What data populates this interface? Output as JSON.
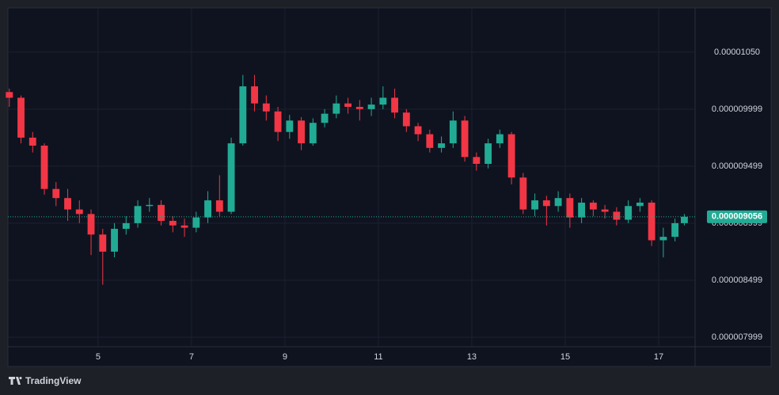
{
  "chart_data": {
    "type": "candlestick",
    "up_color": "#22ab94",
    "down_color": "#f23645",
    "x": [
      3.1,
      3.35,
      3.6,
      3.85,
      4.1,
      4.35,
      4.6,
      4.85,
      5.1,
      5.35,
      5.6,
      5.85,
      6.1,
      6.35,
      6.6,
      6.85,
      7.1,
      7.35,
      7.6,
      7.85,
      8.1,
      8.35,
      8.6,
      8.85,
      9.1,
      9.35,
      9.6,
      9.85,
      10.1,
      10.35,
      10.6,
      10.85,
      11.1,
      11.35,
      11.6,
      11.85,
      12.1,
      12.35,
      12.6,
      12.85,
      13.1,
      13.35,
      13.6,
      13.85,
      14.1,
      14.35,
      14.6,
      14.85,
      15.1,
      15.35,
      15.6,
      15.85,
      16.1,
      16.35,
      16.6,
      16.85,
      17.1,
      17.35,
      17.55
    ],
    "open": [
      1.015e-05,
      1.01e-05,
      9.75e-06,
      9.68e-06,
      9.3e-06,
      9.22e-06,
      9.12e-06,
      9.08e-06,
      8.9e-06,
      8.75e-06,
      8.95e-06,
      9e-06,
      9.15e-06,
      9.16e-06,
      9.02e-06,
      8.98e-06,
      8.96e-06,
      9.05e-06,
      9.2e-06,
      9.1e-06,
      9.7e-06,
      1.02e-05,
      1.005e-05,
      9.98e-06,
      9.8e-06,
      9.9e-06,
      9.7e-06,
      9.88e-06,
      9.96e-06,
      1.005e-05,
      1.002e-05,
      1e-05,
      1.004e-05,
      1.01e-05,
      9.97e-06,
      9.85e-06,
      9.78e-06,
      9.66e-06,
      9.7e-06,
      9.9e-06,
      9.58e-06,
      9.52e-06,
      9.7e-06,
      9.78e-06,
      9.4e-06,
      9.12e-06,
      9.2e-06,
      9.15e-06,
      9.22e-06,
      9.05e-06,
      9.18e-06,
      9.12e-06,
      9.1e-06,
      9.03e-06,
      9.15e-06,
      9.18e-06,
      8.85e-06,
      8.88e-06,
      9e-06
    ],
    "high": [
      1.018e-05,
      1.012e-05,
      9.8e-06,
      9.7e-06,
      9.36e-06,
      9.3e-06,
      9.2e-06,
      9.12e-06,
      8.95e-06,
      9e-06,
      9.06e-06,
      9.2e-06,
      9.22e-06,
      9.2e-06,
      9.06e-06,
      9.04e-06,
      9.1e-06,
      9.28e-06,
      9.42e-06,
      9.75e-06,
      1.03e-05,
      1.03e-05,
      1.012e-05,
      1.002e-05,
      9.95e-06,
      9.93e-06,
      9.92e-06,
      1e-05,
      1.012e-05,
      1.01e-05,
      1.008e-05,
      1.01e-05,
      1.02e-05,
      1.018e-05,
      1e-05,
      9.88e-06,
      9.82e-06,
      9.76e-06,
      9.98e-06,
      9.94e-06,
      9.62e-06,
      9.74e-06,
      9.82e-06,
      9.8e-06,
      9.44e-06,
      9.26e-06,
      9.24e-06,
      9.28e-06,
      9.26e-06,
      9.22e-06,
      9.2e-06,
      9.16e-06,
      9.14e-06,
      9.2e-06,
      9.22e-06,
      9.2e-06,
      8.96e-06,
      9.04e-06,
      9.08e-06
    ],
    "low": [
      1.002e-05,
      9.7e-06,
      9.62e-06,
      9.25e-06,
      9.15e-06,
      9.02e-06,
      9e-06,
      8.72e-06,
      8.46e-06,
      8.7e-06,
      8.9e-06,
      8.96e-06,
      9.1e-06,
      8.98e-06,
      8.92e-06,
      8.88e-06,
      8.92e-06,
      9e-06,
      9.06e-06,
      9.08e-06,
      9.68e-06,
      9.98e-06,
      9.9e-06,
      9.72e-06,
      9.74e-06,
      9.64e-06,
      9.68e-06,
      9.84e-06,
      9.92e-06,
      9.96e-06,
      9.9e-06,
      9.94e-06,
      1e-05,
      9.92e-06,
      9.8e-06,
      9.72e-06,
      9.62e-06,
      9.62e-06,
      9.66e-06,
      9.54e-06,
      9.46e-06,
      9.48e-06,
      9.66e-06,
      9.34e-06,
      9.08e-06,
      9.06e-06,
      8.98e-06,
      9.1e-06,
      8.96e-06,
      9e-06,
      9.06e-06,
      9.04e-06,
      8.98e-06,
      9e-06,
      9.1e-06,
      8.8e-06,
      8.7e-06,
      8.84e-06,
      8.98e-06
    ],
    "close": [
      1.01e-05,
      9.75e-06,
      9.68e-06,
      9.3e-06,
      9.22e-06,
      9.12e-06,
      9.08e-06,
      8.9e-06,
      8.75e-06,
      8.95e-06,
      9e-06,
      9.15e-06,
      9.16e-06,
      9.02e-06,
      8.98e-06,
      8.96e-06,
      9.05e-06,
      9.2e-06,
      9.1e-06,
      9.7e-06,
      1.02e-05,
      1.005e-05,
      9.98e-06,
      9.8e-06,
      9.9e-06,
      9.7e-06,
      9.88e-06,
      9.96e-06,
      1.005e-05,
      1.002e-05,
      1e-05,
      1.004e-05,
      1.01e-05,
      9.97e-06,
      9.85e-06,
      9.78e-06,
      9.66e-06,
      9.7e-06,
      9.9e-06,
      9.58e-06,
      9.52e-06,
      9.7e-06,
      9.78e-06,
      9.4e-06,
      9.12e-06,
      9.2e-06,
      9.15e-06,
      9.22e-06,
      9.05e-06,
      9.18e-06,
      9.12e-06,
      9.1e-06,
      9.03e-06,
      9.15e-06,
      9.18e-06,
      8.85e-06,
      8.88e-06,
      9e-06,
      9.056e-06
    ],
    "last_price": {
      "value": 9.056e-06,
      "label": "0.000009056"
    },
    "xlim": [
      3.07,
      17.78
    ],
    "xticks": [
      5,
      7,
      9,
      11,
      13,
      15,
      17
    ],
    "ylim": [
      7.916e-06,
      1.0888e-05
    ],
    "yticks": [
      {
        "value": 1.05e-05,
        "label": "0.00001050"
      },
      {
        "value": 9.999e-06,
        "label": "0.000009999"
      },
      {
        "value": 9.499e-06,
        "label": "0.000009499"
      },
      {
        "value": 8.999e-06,
        "label": "0.000008999"
      },
      {
        "value": 8.499e-06,
        "label": "0.000008499"
      },
      {
        "value": 7.999e-06,
        "label": "0.000007999"
      }
    ],
    "grid": true
  },
  "branding": "TradingView"
}
